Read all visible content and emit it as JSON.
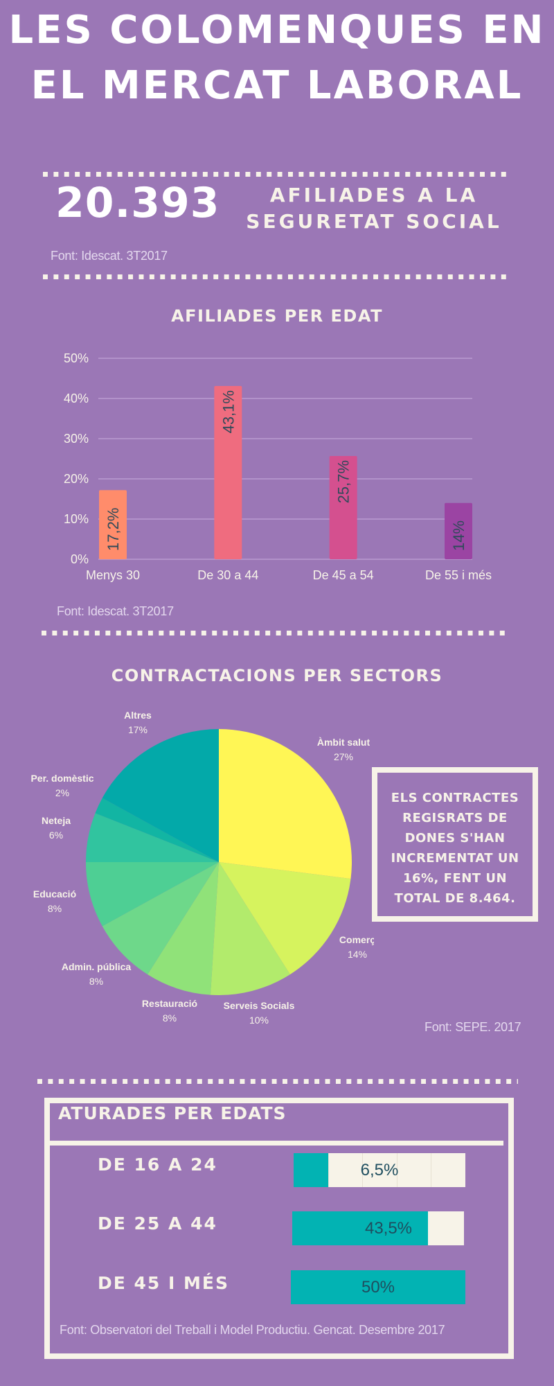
{
  "header": {
    "title_line1": "LES COLOMENQUES EN",
    "title_line2": "EL MERCAT LABORAL"
  },
  "affiliates": {
    "number": "20.393",
    "label_line1": "AFILIADES A LA",
    "label_line2": "SEGURETAT SOCIAL",
    "source": "Font: Idescat. 3T2017"
  },
  "chart_data": [
    {
      "type": "bar",
      "title": "AFILIADES PER EDAT",
      "categories": [
        "Menys 30",
        "De 30 a 44",
        "De 45 a 54",
        "De 55 i més"
      ],
      "values": [
        17.2,
        43.1,
        25.7,
        14
      ],
      "value_labels": [
        "17,2%",
        "43,1%",
        "25,7%",
        "14%"
      ],
      "colors": [
        "#FF8C6B",
        "#EF6C7F",
        "#D4508F",
        "#9B44A3"
      ],
      "ylim": [
        0,
        50
      ],
      "yticks": [
        0,
        10,
        20,
        30,
        40,
        50
      ],
      "ytick_labels": [
        "0%",
        "10%",
        "20%",
        "30%",
        "40%",
        "50%"
      ],
      "grid": true,
      "xlabel": "",
      "ylabel": "",
      "source": "Font: Idescat. 3T2017"
    },
    {
      "type": "pie",
      "title": "CONTRACTACIONS PER SECTORS",
      "slices": [
        {
          "label": "Àmbit salut",
          "value": 27,
          "value_label": "27%",
          "color": "#FFF655"
        },
        {
          "label": "Comerç",
          "value": 14,
          "value_label": "14%",
          "color": "#D6F35E"
        },
        {
          "label": "Serveis Socials",
          "value": 10,
          "value_label": "10%",
          "color": "#B2EB6C"
        },
        {
          "label": "Restauració",
          "value": 8,
          "value_label": "8%",
          "color": "#90E279"
        },
        {
          "label": "Admin. pública",
          "value": 8,
          "value_label": "8%",
          "color": "#6ED88A"
        },
        {
          "label": "Educació",
          "value": 8,
          "value_label": "8%",
          "color": "#4ECF94"
        },
        {
          "label": "Neteja",
          "value": 6,
          "value_label": "6%",
          "color": "#31C49F"
        },
        {
          "label": "Per. domèstic",
          "value": 2,
          "value_label": "2%",
          "color": "#12B5A3"
        },
        {
          "label": "Altres",
          "value": 17,
          "value_label": "17%",
          "color": "#03A9A9"
        }
      ],
      "start": "top",
      "direction": "clockwise",
      "source": "Font: SEPE. 2017"
    },
    {
      "type": "bar",
      "orientation": "horizontal",
      "title": "ATURADES PER EDATS",
      "categories": [
        "DE 16 A 24",
        "DE 25 A 44",
        "DE 45 I MÉS"
      ],
      "values": [
        6.5,
        43.5,
        50
      ],
      "value_labels": [
        "6,5%",
        "43,5%",
        "50%"
      ],
      "fill_fraction": [
        0.2,
        0.79,
        1.0
      ],
      "fill_color": "#02B3B3",
      "track_color": "#F7F3E8",
      "source": "Font: Observatori del Treball i Model Productiu. Gencat. Desembre 2017"
    }
  ],
  "callout": {
    "lines": [
      "ELS CONTRACTES",
      "REGISRATS DE",
      "DONES S'HAN",
      "INCREMENTAT UN",
      "16%, FENT UN",
      "TOTAL DE 8.464."
    ]
  },
  "colors": {
    "background": "#9B77B6",
    "cream": "#F7F3E8",
    "value_text": "#2E4A5A"
  }
}
